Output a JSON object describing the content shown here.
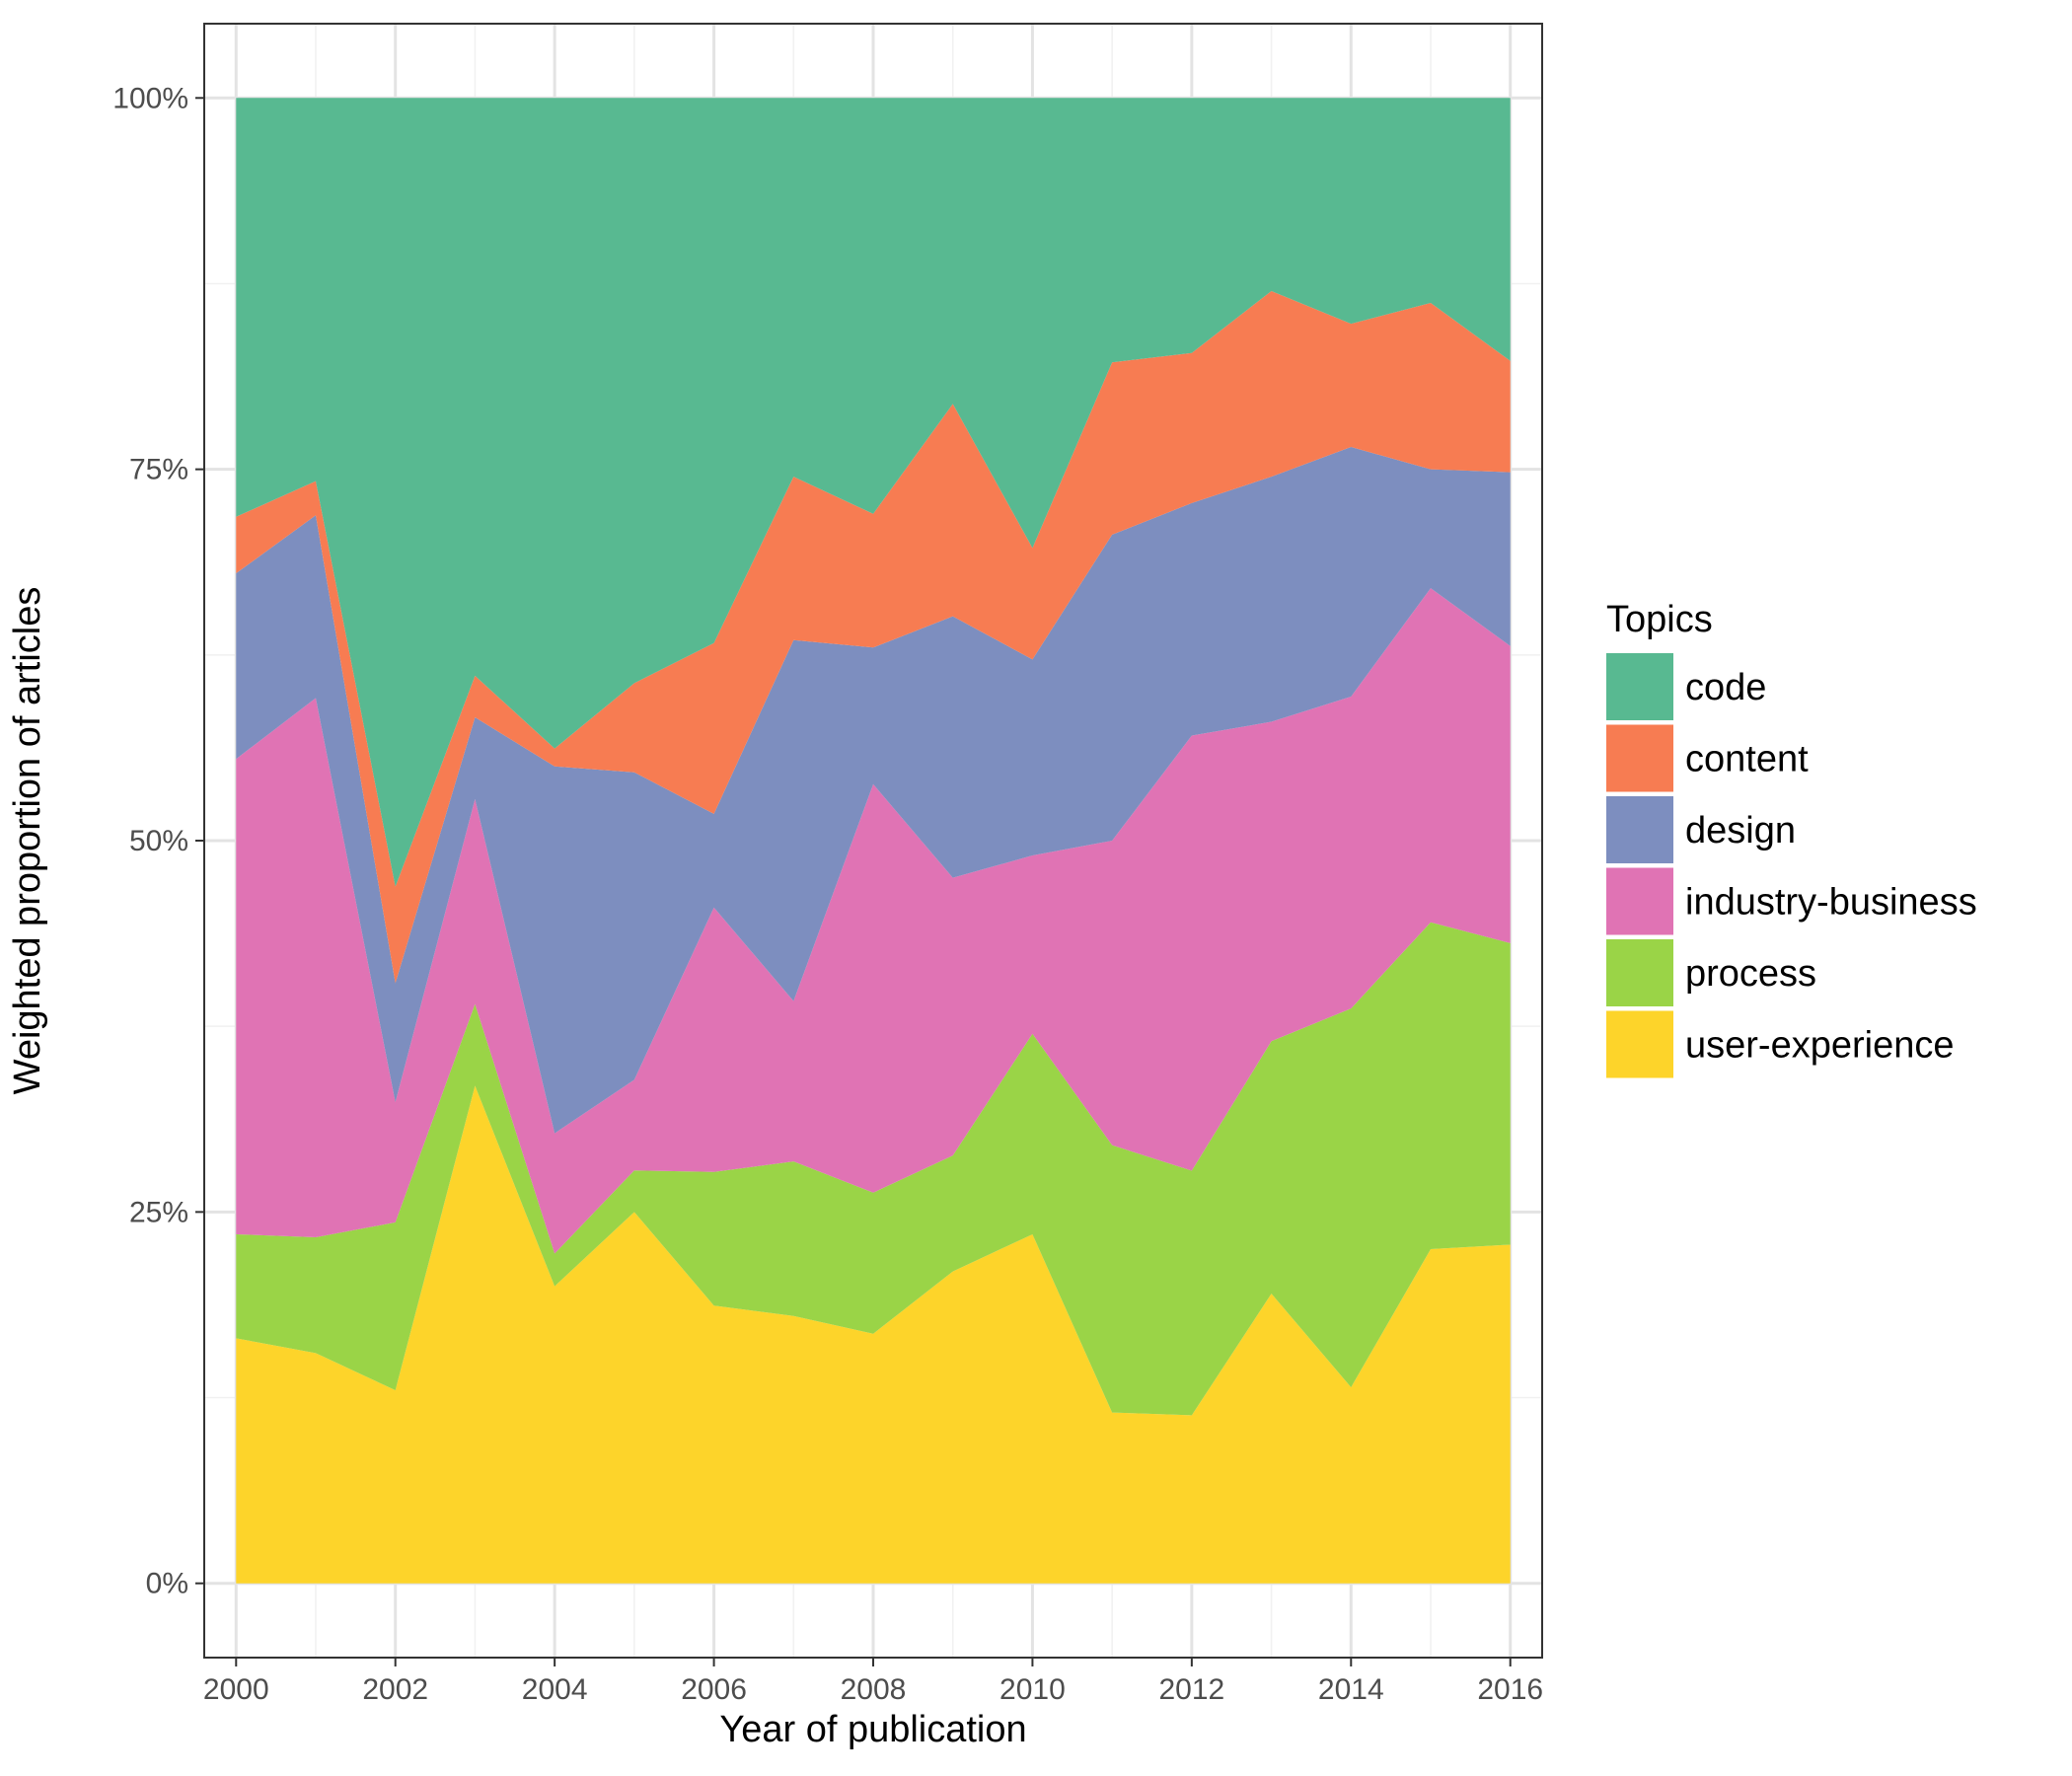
{
  "chart_data": {
    "type": "area",
    "stacked": true,
    "normalized": true,
    "xlabel": "Year of publication",
    "ylabel": "Weighted proportion of articles",
    "x": [
      2000,
      2001,
      2002,
      2003,
      2004,
      2005,
      2006,
      2007,
      2008,
      2009,
      2010,
      2011,
      2012,
      2013,
      2014,
      2015,
      2016
    ],
    "xlim": [
      1999.6,
      2016.4
    ],
    "ylim": [
      -0.05,
      1.05
    ],
    "x_ticks": [
      2000,
      2002,
      2004,
      2006,
      2008,
      2010,
      2012,
      2014,
      2016
    ],
    "x_tick_labels": [
      "2000",
      "2002",
      "2004",
      "2006",
      "2008",
      "2010",
      "2012",
      "2014",
      "2016"
    ],
    "y_ticks": [
      0,
      0.25,
      0.5,
      0.75,
      1.0
    ],
    "y_tick_labels": [
      "0%",
      "25%",
      "50%",
      "75%",
      "100%"
    ],
    "grid": true,
    "legend": {
      "title": "Topics",
      "position": "right",
      "order": [
        "code",
        "content",
        "design",
        "industry-business",
        "process",
        "user-experience"
      ]
    },
    "series": [
      {
        "name": "user-experience",
        "color": "#FDD42A",
        "values": [
          0.165,
          0.155,
          0.13,
          0.335,
          0.2,
          0.25,
          0.187,
          0.18,
          0.168,
          0.21,
          0.235,
          0.115,
          0.112,
          0.195,
          0.132,
          0.225,
          0.228
        ]
      },
      {
        "name": "process",
        "color": "#9AD447",
        "values": [
          0.07,
          0.078,
          0.113,
          0.055,
          0.022,
          0.028,
          0.09,
          0.104,
          0.095,
          0.078,
          0.135,
          0.18,
          0.163,
          0.17,
          0.255,
          0.22,
          0.203
        ]
      },
      {
        "name": "industry-business",
        "color": "#E073B4",
        "values": [
          0.32,
          0.363,
          0.081,
          0.138,
          0.081,
          0.061,
          0.178,
          0.108,
          0.275,
          0.187,
          0.12,
          0.205,
          0.29,
          0.215,
          0.21,
          0.225,
          0.2
        ]
      },
      {
        "name": "design",
        "color": "#7D8EBF",
        "values": [
          0.125,
          0.123,
          0.08,
          0.055,
          0.247,
          0.207,
          0.063,
          0.243,
          0.092,
          0.176,
          0.132,
          0.206,
          0.155,
          0.165,
          0.168,
          0.08,
          0.117
        ]
      },
      {
        "name": "content",
        "color": "#F77C52",
        "values": [
          0.038,
          0.023,
          0.065,
          0.028,
          0.012,
          0.06,
          0.115,
          0.11,
          0.09,
          0.143,
          0.075,
          0.116,
          0.1,
          0.125,
          0.083,
          0.112,
          0.075
        ]
      },
      {
        "name": "code",
        "color": "#58B991",
        "values": [
          0.282,
          0.258,
          0.531,
          0.389,
          0.438,
          0.394,
          0.367,
          0.255,
          0.28,
          0.206,
          0.303,
          0.178,
          0.17,
          0.13,
          0.152,
          0.138,
          0.177
        ]
      }
    ]
  }
}
